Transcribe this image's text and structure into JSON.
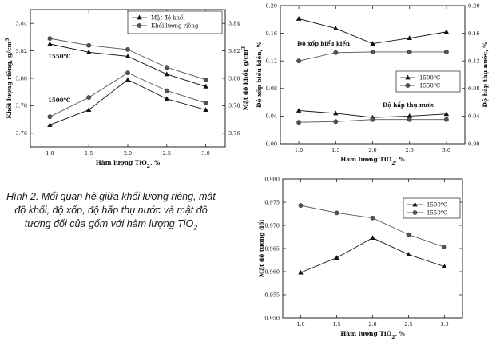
{
  "caption": {
    "main": "Hình 2. Mối quan hệ giữa khối lượng riêng, mật độ khối, độ xốp, độ hấp thụ nước và mật độ tương đối của gốm với hàm lượng TiO",
    "sub": "2"
  },
  "chart_data": [
    {
      "type": "line",
      "id": "c1",
      "xlabel": "Hàm lượng TiO₂, %",
      "ylabel_left": "Khối lượng riêng, g/cm³",
      "ylabel_right": "Mật độ khối, g/cm³",
      "x": [
        1.0,
        1.5,
        2.0,
        2.5,
        3.0
      ],
      "xlim": [
        0.75,
        3.25
      ],
      "xticks": [
        "1.0",
        "1.5",
        "2.0",
        "2.5",
        "3.0"
      ],
      "ylim": [
        3.75,
        3.85
      ],
      "yticks": [
        "3.76",
        "3.78",
        "3.80",
        "3.82",
        "3.84"
      ],
      "yticks_right": [
        "3.76",
        "3.78",
        "3.80",
        "3.82",
        "3.84"
      ],
      "legend": [
        {
          "name": "Mật độ khối",
          "marker": "triangle"
        },
        {
          "name": "Khối lượng riêng",
          "marker": "circle"
        }
      ],
      "annotations": [
        "1550°C",
        "1500°C"
      ],
      "series": [
        {
          "name": "1550°C Khối lượng riêng",
          "marker": "circle",
          "values": [
            3.829,
            3.824,
            3.821,
            3.808,
            3.799
          ]
        },
        {
          "name": "1550°C Mật độ khối",
          "marker": "triangle",
          "values": [
            3.825,
            3.819,
            3.816,
            3.803,
            3.794
          ]
        },
        {
          "name": "1500°C Mật độ khối",
          "marker": "triangle",
          "values": [
            3.766,
            3.777,
            3.799,
            3.785,
            3.777
          ]
        },
        {
          "name": "1500°C Khối lượng riêng",
          "marker": "circle",
          "values": [
            3.772,
            3.786,
            3.804,
            3.791,
            3.782
          ]
        }
      ]
    },
    {
      "type": "line",
      "id": "c2",
      "xlabel": "Hàm lượng TiO₂, %",
      "ylabel_left": "Độ xốp biểu kiến, %",
      "ylabel_right": "Độ hấp thụ nước, %",
      "x": [
        1.0,
        1.5,
        2.0,
        2.5,
        3.0
      ],
      "xlim": [
        0.75,
        3.25
      ],
      "xticks": [
        "1.0",
        "1.5",
        "2.0",
        "2.5",
        "3.0"
      ],
      "ylim": [
        0.0,
        0.2
      ],
      "yticks": [
        "0.00",
        "0.04",
        "0.08",
        "0.12",
        "0.16",
        "0.20"
      ],
      "yticks_right": [
        "0.00",
        "0.04",
        "0.08",
        "0.12",
        "0.16",
        "0.20"
      ],
      "legend": [
        {
          "name": "1500°C",
          "marker": "triangle"
        },
        {
          "name": "1550°C",
          "marker": "circle"
        }
      ],
      "annotations": [
        "Độ xốp biểu kiến",
        "Độ hấp thụ nước"
      ],
      "series": [
        {
          "name": "1500°C Độ xốp",
          "marker": "triangle",
          "values": [
            0.181,
            0.167,
            0.145,
            0.153,
            0.162
          ]
        },
        {
          "name": "1550°C Độ xốp",
          "marker": "circle",
          "values": [
            0.12,
            0.132,
            0.133,
            0.133,
            0.133
          ]
        },
        {
          "name": "1500°C Độ hấp thụ nước",
          "marker": "triangle",
          "values": [
            0.048,
            0.044,
            0.038,
            0.04,
            0.043
          ]
        },
        {
          "name": "1550°C Độ hấp thụ nước",
          "marker": "circle",
          "values": [
            0.031,
            0.032,
            0.035,
            0.035,
            0.035
          ]
        }
      ]
    },
    {
      "type": "line",
      "id": "c3",
      "xlabel": "Hàm lượng TiO₂, %",
      "ylabel_left": "Mật độ tương đối",
      "x": [
        1.0,
        1.5,
        2.0,
        2.5,
        3.0
      ],
      "xlim": [
        0.75,
        3.25
      ],
      "xticks": [
        "1.0",
        "1.5",
        "2.0",
        "2.5",
        "3.0"
      ],
      "ylim": [
        0.95,
        0.98
      ],
      "yticks": [
        "0.950",
        "0.955",
        "0.960",
        "0.965",
        "0.970",
        "0.975",
        "0.980"
      ],
      "legend": [
        {
          "name": "1500°C",
          "marker": "triangle"
        },
        {
          "name": "1550°C",
          "marker": "circle"
        }
      ],
      "series": [
        {
          "name": "1500°C",
          "marker": "triangle",
          "values": [
            0.9598,
            0.963,
            0.9673,
            0.9637,
            0.9611
          ]
        },
        {
          "name": "1550°C",
          "marker": "circle",
          "values": [
            0.9743,
            0.9727,
            0.9716,
            0.968,
            0.9653
          ]
        }
      ]
    }
  ]
}
